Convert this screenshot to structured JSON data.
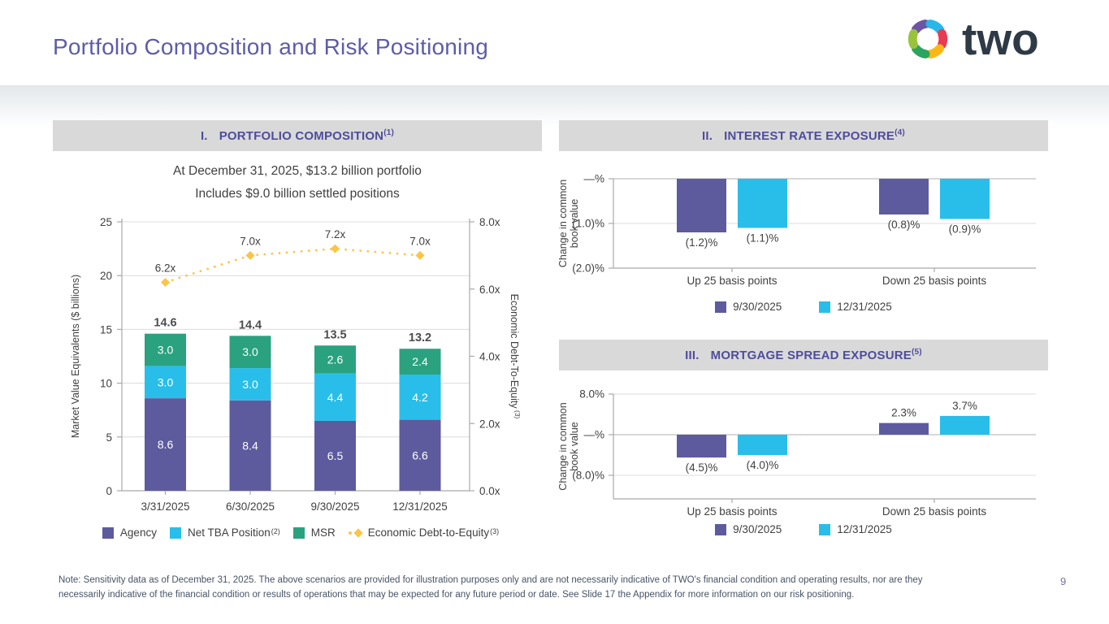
{
  "slide": {
    "title": "Portfolio Composition and Risk Positioning",
    "page_number": "9",
    "note_line1": "Note: Sensitivity data as of December 31, 2025. The above scenarios are provided for illustration purposes only and are not necessarily indicative of TWO's financial condition and operating results, nor are they",
    "note_line2": "necessarily indicative of the financial condition or results of operations that may be expected for any future period or date. See Slide 17 the Appendix for more information on our risk positioning.",
    "logo": {
      "text": "two",
      "icon_colors": [
        "#6d55a3",
        "#29b6e8",
        "#e63b53",
        "#fcb717",
        "#2aa45f",
        "#9ac33c"
      ]
    }
  },
  "chart_data": [
    {
      "id": "portfolio-composition",
      "type": "bar",
      "section_label": "I.",
      "section_title": "PORTFOLIO COMPOSITION",
      "section_sup": "(1)",
      "subtitle_line1": "At December 31, 2025, $13.2 billion portfolio",
      "subtitle_line2": "Includes $9.0 billion settled positions",
      "categories": [
        "3/31/2025",
        "6/30/2025",
        "9/30/2025",
        "12/31/2025"
      ],
      "series": [
        {
          "name": "Agency",
          "color": "#5d5b9e",
          "values": [
            8.6,
            8.4,
            6.5,
            6.6
          ]
        },
        {
          "name": "Net TBA Position",
          "sup": "(2)",
          "color": "#29bee9",
          "values": [
            3.0,
            3.0,
            4.4,
            4.2
          ]
        },
        {
          "name": "MSR",
          "color": "#2aa27f",
          "values": [
            3.0,
            3.0,
            2.6,
            2.4
          ]
        }
      ],
      "totals": [
        14.6,
        14.4,
        13.5,
        13.2
      ],
      "line_series": {
        "name": "Economic Debt-to-Equity",
        "sup": "(3)",
        "color": "#fcc545",
        "values": [
          6.2,
          7.0,
          7.2,
          7.0
        ],
        "point_labels": [
          "6.2x",
          "7.0x",
          "7.2x",
          "7.0x"
        ]
      },
      "ylabel": "Market Value Equivalents ($ billions)",
      "ylim": [
        0,
        25
      ],
      "yticks": [
        0,
        5,
        10,
        15,
        20,
        25
      ],
      "y2label": "Economic Debt-To-Equity",
      "y2label_sup": "(3)",
      "y2lim": [
        0,
        8
      ],
      "y2ticks": [
        {
          "v": 0,
          "label": "0.0x"
        },
        {
          "v": 2,
          "label": "2.0x"
        },
        {
          "v": 4,
          "label": "4.0x"
        },
        {
          "v": 6,
          "label": "6.0x"
        },
        {
          "v": 8,
          "label": "8.0x"
        }
      ],
      "grid": true,
      "legend_position": "bottom"
    },
    {
      "id": "interest-rate-exposure",
      "type": "bar",
      "section_label": "II.",
      "section_title": "INTEREST RATE EXPOSURE",
      "section_sup": "(4)",
      "categories": [
        "Up 25 basis points",
        "Down 25 basis points"
      ],
      "series": [
        {
          "name": "9/30/2025",
          "color": "#5d5b9e",
          "values": [
            -1.2,
            -0.8
          ],
          "labels": [
            "(1.2)%",
            "(0.8)%"
          ]
        },
        {
          "name": "12/31/2025",
          "color": "#29bee9",
          "values": [
            -1.1,
            -0.9
          ],
          "labels": [
            "(1.1)%",
            "(0.9)%"
          ]
        }
      ],
      "ylabel": "Change in common book value",
      "ylim": [
        -2,
        0
      ],
      "yticks": [
        {
          "v": 0,
          "label": "—%"
        },
        {
          "v": -1,
          "label": "(1.0)%"
        },
        {
          "v": -2,
          "label": "(2.0)%"
        }
      ],
      "grid": true,
      "legend_position": "bottom"
    },
    {
      "id": "mortgage-spread-exposure",
      "type": "bar",
      "section_label": "III.",
      "section_title": "MORTGAGE SPREAD EXPOSURE",
      "section_sup": "(5)",
      "categories": [
        "Up 25 basis points",
        "Down 25 basis points"
      ],
      "series": [
        {
          "name": "9/30/2025",
          "color": "#5d5b9e",
          "values": [
            -4.5,
            2.3
          ],
          "labels": [
            "(4.5)%",
            "2.3%"
          ]
        },
        {
          "name": "12/31/2025",
          "color": "#29bee9",
          "values": [
            -4.0,
            3.7
          ],
          "labels": [
            "(4.0)%",
            "3.7%"
          ]
        }
      ],
      "ylabel": "Change in common book value",
      "ylim": [
        -12,
        8
      ],
      "yticks": [
        {
          "v": 8,
          "label": "8.0%"
        },
        {
          "v": 0,
          "label": "—%"
        },
        {
          "v": -8,
          "label": "(8.0)%"
        }
      ],
      "grid": true,
      "legend_position": "bottom"
    }
  ]
}
